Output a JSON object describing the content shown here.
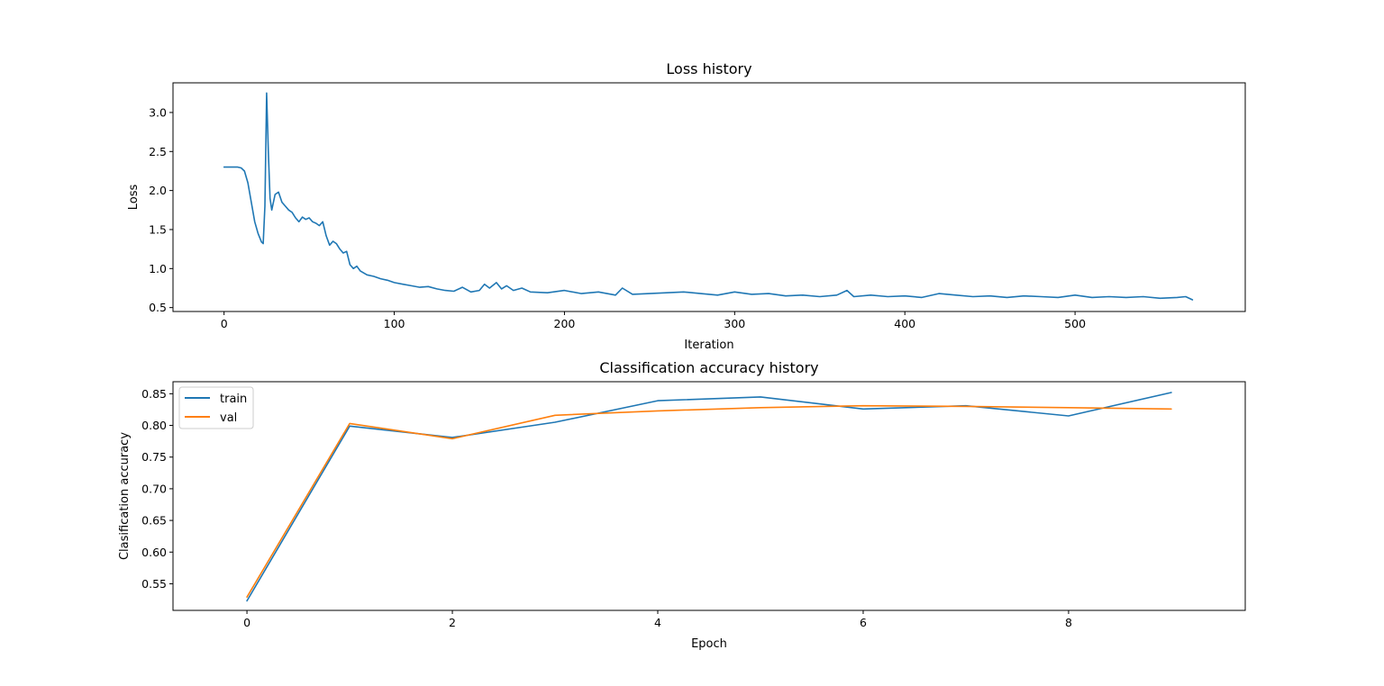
{
  "chart_data": [
    {
      "type": "line",
      "title": "Loss history",
      "xlabel": "Iteration",
      "ylabel": "Loss",
      "xlim": [
        -30,
        600
      ],
      "ylim": [
        0.45,
        3.38
      ],
      "xticks": [
        0,
        100,
        200,
        300,
        400,
        500
      ],
      "yticks": [
        0.5,
        1.0,
        1.5,
        2.0,
        2.5,
        3.0
      ],
      "xtick_labels": [
        "0",
        "100",
        "200",
        "300",
        "400",
        "500"
      ],
      "ytick_labels": [
        "0.5",
        "1.0",
        "1.5",
        "2.0",
        "2.5",
        "3.0"
      ],
      "grid": false,
      "series": [
        {
          "color": "#1f77b4",
          "x": [
            0,
            2,
            4,
            6,
            8,
            10,
            12,
            14,
            16,
            18,
            20,
            22,
            23,
            24,
            25,
            26,
            27,
            28,
            30,
            32,
            34,
            36,
            38,
            40,
            42,
            44,
            46,
            48,
            50,
            52,
            54,
            56,
            58,
            60,
            62,
            64,
            66,
            68,
            70,
            72,
            74,
            76,
            78,
            80,
            84,
            88,
            92,
            96,
            100,
            105,
            110,
            115,
            120,
            125,
            130,
            135,
            140,
            145,
            150,
            153,
            156,
            160,
            163,
            166,
            170,
            175,
            180,
            190,
            200,
            210,
            220,
            230,
            234,
            240,
            250,
            260,
            270,
            280,
            290,
            300,
            310,
            320,
            330,
            340,
            350,
            360,
            366,
            370,
            380,
            390,
            400,
            410,
            420,
            430,
            440,
            450,
            460,
            470,
            480,
            490,
            500,
            510,
            520,
            530,
            540,
            550,
            560,
            565,
            569
          ],
          "y": [
            2.3,
            2.3,
            2.3,
            2.3,
            2.3,
            2.29,
            2.25,
            2.1,
            1.85,
            1.6,
            1.45,
            1.34,
            1.32,
            1.8,
            3.25,
            2.5,
            1.9,
            1.75,
            1.95,
            1.98,
            1.85,
            1.8,
            1.75,
            1.72,
            1.65,
            1.6,
            1.66,
            1.63,
            1.65,
            1.6,
            1.58,
            1.55,
            1.6,
            1.42,
            1.3,
            1.35,
            1.32,
            1.25,
            1.2,
            1.22,
            1.05,
            1.0,
            1.03,
            0.97,
            0.92,
            0.9,
            0.87,
            0.85,
            0.82,
            0.8,
            0.78,
            0.76,
            0.77,
            0.74,
            0.72,
            0.71,
            0.76,
            0.7,
            0.72,
            0.8,
            0.75,
            0.82,
            0.74,
            0.78,
            0.72,
            0.75,
            0.7,
            0.69,
            0.72,
            0.68,
            0.7,
            0.66,
            0.75,
            0.67,
            0.68,
            0.69,
            0.7,
            0.68,
            0.66,
            0.7,
            0.67,
            0.68,
            0.65,
            0.66,
            0.64,
            0.66,
            0.72,
            0.64,
            0.66,
            0.64,
            0.65,
            0.63,
            0.68,
            0.66,
            0.64,
            0.65,
            0.63,
            0.65,
            0.64,
            0.63,
            0.66,
            0.63,
            0.64,
            0.63,
            0.64,
            0.62,
            0.63,
            0.64,
            0.6
          ]
        }
      ]
    },
    {
      "type": "line",
      "title": "Classification accuracy history",
      "xlabel": "Epoch",
      "ylabel": "Clasification accuracy",
      "xlim": [
        -0.72,
        9.72
      ],
      "ylim": [
        0.508,
        0.869
      ],
      "xticks": [
        0,
        2,
        4,
        6,
        8
      ],
      "yticks": [
        0.55,
        0.6,
        0.65,
        0.7,
        0.75,
        0.8,
        0.85
      ],
      "xtick_labels": [
        "0",
        "2",
        "4",
        "6",
        "8"
      ],
      "ytick_labels": [
        "0.55",
        "0.60",
        "0.65",
        "0.70",
        "0.75",
        "0.80",
        "0.85"
      ],
      "grid": false,
      "legend_placement": "upper-left",
      "series": [
        {
          "name": "train",
          "color": "#1f77b4",
          "x": [
            0,
            1,
            2,
            3,
            4,
            5,
            6,
            7,
            8,
            9
          ],
          "y": [
            0.523,
            0.799,
            0.781,
            0.805,
            0.839,
            0.845,
            0.826,
            0.831,
            0.815,
            0.852
          ]
        },
        {
          "name": "val",
          "color": "#ff7f0e",
          "x": [
            0,
            1,
            2,
            3,
            4,
            5,
            6,
            7,
            8,
            9
          ],
          "y": [
            0.529,
            0.803,
            0.779,
            0.816,
            0.823,
            0.828,
            0.831,
            0.83,
            0.828,
            0.826
          ]
        }
      ]
    }
  ]
}
